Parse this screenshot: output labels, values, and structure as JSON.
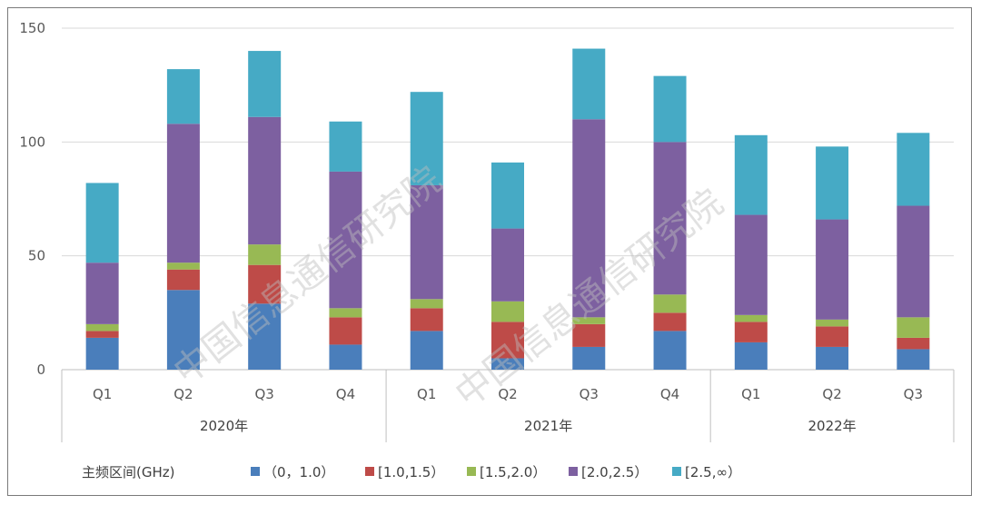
{
  "chart_data": {
    "type": "bar",
    "stacked": true,
    "y_ticks": [
      "0",
      "50",
      "100",
      "150"
    ],
    "ylim": [
      0,
      150
    ],
    "grid": true,
    "groups": [
      {
        "label": "2020年",
        "categories": [
          "Q1",
          "Q2",
          "Q3",
          "Q4"
        ]
      },
      {
        "label": "2021年",
        "categories": [
          "Q1",
          "Q2",
          "Q3",
          "Q4"
        ]
      },
      {
        "label": "2022年",
        "categories": [
          "Q1",
          "Q2",
          "Q3"
        ]
      }
    ],
    "categories": [
      "Q1",
      "Q2",
      "Q3",
      "Q4",
      "Q1",
      "Q2",
      "Q3",
      "Q4",
      "Q1",
      "Q2",
      "Q3"
    ],
    "legend_title": "主频区间(GHz)",
    "legend_position": "bottom",
    "series": [
      {
        "name": "（0，1.0）",
        "color": "#4a7ebb",
        "values": [
          14,
          35,
          29,
          11,
          17,
          5,
          10,
          17,
          12,
          10,
          9
        ]
      },
      {
        "name": "[1.0,1.5）",
        "color": "#be4b48",
        "values": [
          3,
          9,
          17,
          12,
          10,
          16,
          10,
          8,
          9,
          9,
          5
        ]
      },
      {
        "name": "[1.5,2.0）",
        "color": "#98b954",
        "values": [
          3,
          3,
          9,
          4,
          4,
          9,
          3,
          8,
          3,
          3,
          9
        ]
      },
      {
        "name": "[2.0,2.5）",
        "color": "#7d60a0",
        "values": [
          27,
          61,
          56,
          60,
          50,
          32,
          87,
          67,
          44,
          44,
          49
        ]
      },
      {
        "name": "[2.5,∞）",
        "color": "#46aac5",
        "values": [
          35,
          24,
          29,
          22,
          41,
          29,
          31,
          29,
          35,
          32,
          32
        ]
      }
    ],
    "watermark": [
      "中国信息通信研究院",
      "中国信息通信研究院"
    ]
  }
}
